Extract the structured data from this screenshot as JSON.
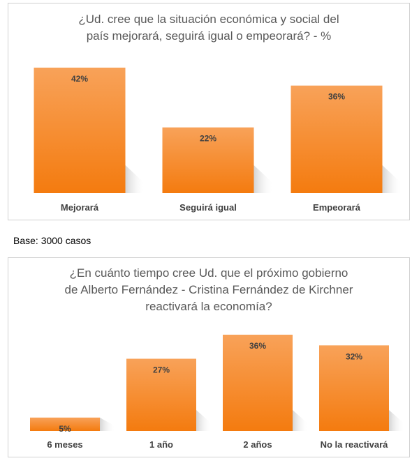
{
  "chart_data": [
    {
      "type": "bar",
      "title_lines": [
        "¿Ud. cree que la situación económica y social del",
        "país mejorará, seguirá igual o empeorará? - %"
      ],
      "categories": [
        "Mejorará",
        "Seguirá igual",
        "Empeorará"
      ],
      "values": [
        42,
        22,
        36
      ],
      "data_labels": [
        "42%",
        "22%",
        "36%"
      ],
      "ylim": [
        0,
        42
      ],
      "grid": false,
      "legend": "none",
      "bar_color_top": "#f8a259",
      "bar_color_bottom": "#f47b0f"
    },
    {
      "type": "bar",
      "title_lines": [
        "¿En cuánto tiempo cree Ud. que el próximo gobierno",
        "de Alberto Fernández - Cristina Fernández de Kirchner",
        "reactivará la economía?"
      ],
      "categories": [
        "6 meses",
        "1 año",
        "2 años",
        "No la reactivará"
      ],
      "values": [
        5,
        27,
        36,
        32
      ],
      "data_labels": [
        "5%",
        "27%",
        "36%",
        "32%"
      ],
      "ylim": [
        0,
        36
      ],
      "grid": false,
      "legend": "none",
      "bar_color_top": "#f8a259",
      "bar_color_bottom": "#f47b0f"
    }
  ],
  "base_note": "Base: 3000 casos"
}
